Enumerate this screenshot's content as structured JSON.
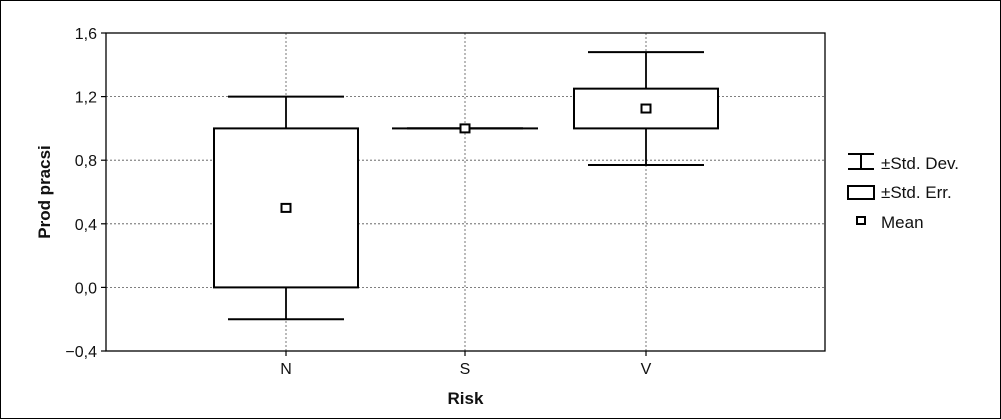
{
  "chart_data": {
    "type": "box",
    "xlabel": "Risk",
    "ylabel": "Prod pracsi",
    "ylim": [
      -0.4,
      1.6
    ],
    "yticks": [
      -0.4,
      0.0,
      0.4,
      0.8,
      1.2,
      1.6
    ],
    "ytick_labels": [
      "−0,4",
      "0,0",
      "0,4",
      "0,8",
      "1,2",
      "1,6"
    ],
    "categories": [
      "N",
      "S",
      "V"
    ],
    "grid": true,
    "legend_position": "right",
    "legend": [
      {
        "key": "sd",
        "label": "±Std. Dev."
      },
      {
        "key": "se",
        "label": "±Std. Err."
      },
      {
        "key": "mean",
        "label": "Mean"
      }
    ],
    "groups": [
      {
        "category": "N",
        "mean": 0.5,
        "se_low": 0.0,
        "se_high": 1.0,
        "sd_low": -0.2,
        "sd_high": 1.2
      },
      {
        "category": "S",
        "mean": 1.0,
        "se_low": 1.0,
        "se_high": 1.0,
        "sd_low": 1.0,
        "sd_high": 1.0
      },
      {
        "category": "V",
        "mean": 1.125,
        "se_low": 1.0,
        "se_high": 1.25,
        "sd_low": 0.77,
        "sd_high": 1.48
      }
    ]
  }
}
